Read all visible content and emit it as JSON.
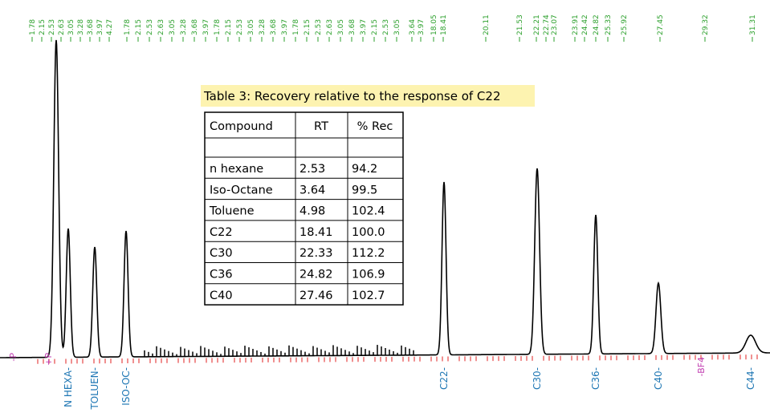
{
  "caption": "Table 3: Recovery relative to the response of C22",
  "table": {
    "header": [
      "Compound",
      "RT",
      "% Rec"
    ],
    "rows": [
      [
        "n hexane",
        "2.53",
        "94.2"
      ],
      [
        "Iso-Octane",
        "3.64",
        "99.5"
      ],
      [
        "Toluene",
        "4.98",
        "102.4"
      ],
      [
        "C22",
        "18.41",
        "100.0"
      ],
      [
        "C30",
        "22.33",
        "112.2"
      ],
      [
        "C36",
        "24.82",
        "106.9"
      ],
      [
        "C40",
        "27.46",
        "102.7"
      ]
    ]
  },
  "rt_labels_left": [
    "1.78",
    "2.15",
    "2.53",
    "2.63",
    "3.05",
    "3.28",
    "3.68",
    "3.97",
    "4.27"
  ],
  "rt_labels_mid": [
    "1.78",
    "2.15",
    "2.53",
    "2.63",
    "3.05",
    "3.28",
    "3.68",
    "3.97",
    "1.78",
    "2.15",
    "2.53",
    "3.05",
    "3.28",
    "3.68",
    "3.97",
    "1.78",
    "2.15",
    "2.53",
    "2.63",
    "3.05",
    "3.68",
    "3.97",
    "2.15",
    "2.53",
    "3.05"
  ],
  "rt_labels_right": [
    "3.64",
    "3.97",
    "18.05",
    "18.41",
    "20.11",
    "21.53",
    "22.21",
    "22.74",
    "23.07",
    "23.91",
    "24.42",
    "24.82",
    "25.33",
    "25.92",
    "27.45",
    "29.32",
    "31.31"
  ],
  "peak_labels": [
    "N HEXA-",
    "TOLUEN-",
    "ISO-OC-",
    "C22-",
    "C30-",
    "C36-",
    "C40-",
    "C44-"
  ],
  "markers": [
    "-P",
    "+P",
    "-BF4"
  ]
}
